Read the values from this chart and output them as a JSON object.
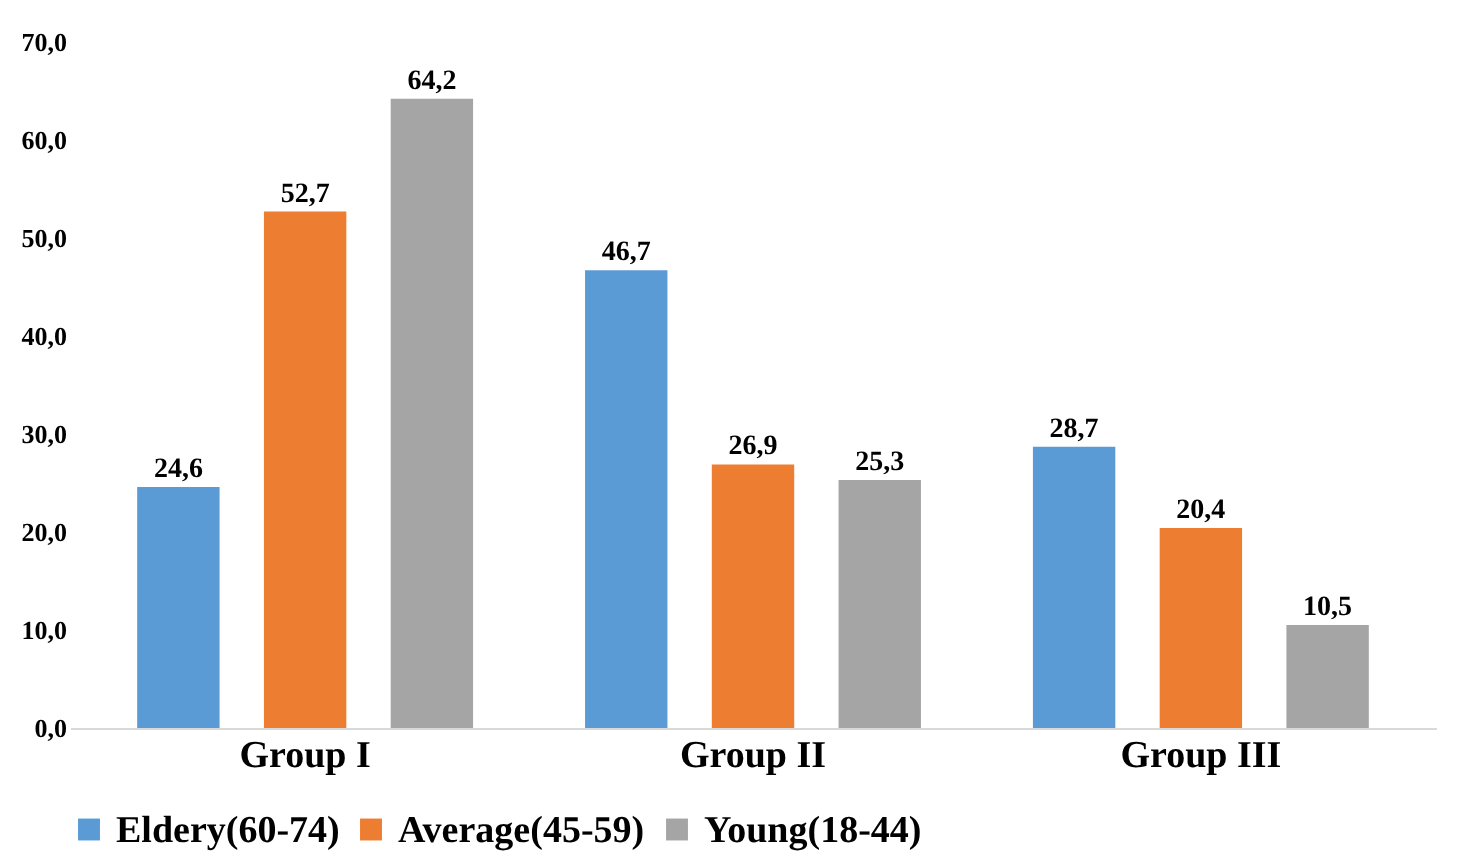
{
  "chart_data": {
    "type": "bar",
    "categories": [
      "Group I",
      "Group II",
      "Group III"
    ],
    "series": [
      {
        "name": "Eldery(60-74)",
        "color": "#5b9bd5",
        "values": [
          24.6,
          46.7,
          28.7
        ],
        "value_labels": [
          "24,6",
          "46,7",
          "28,7"
        ]
      },
      {
        "name": "Average(45-59)",
        "color": "#ed7d31",
        "values": [
          52.7,
          26.9,
          20.4
        ],
        "value_labels": [
          "52,7",
          "26,9",
          "20,4"
        ]
      },
      {
        "name": "Young(18-44)",
        "color": "#a5a5a5",
        "values": [
          64.2,
          25.3,
          10.5
        ],
        "value_labels": [
          "64,2",
          "25,3",
          "10,5"
        ]
      }
    ],
    "ylim": [
      0,
      70
    ],
    "yticks": [
      {
        "value": 0,
        "label": "0,0"
      },
      {
        "value": 10,
        "label": "10,0"
      },
      {
        "value": 20,
        "label": "20,0"
      },
      {
        "value": 30,
        "label": "30,0"
      },
      {
        "value": 40,
        "label": "40,0"
      },
      {
        "value": 50,
        "label": "50,0"
      },
      {
        "value": 60,
        "label": "60,0"
      },
      {
        "value": 70,
        "label": "70,0"
      }
    ],
    "legend": "bottom"
  }
}
